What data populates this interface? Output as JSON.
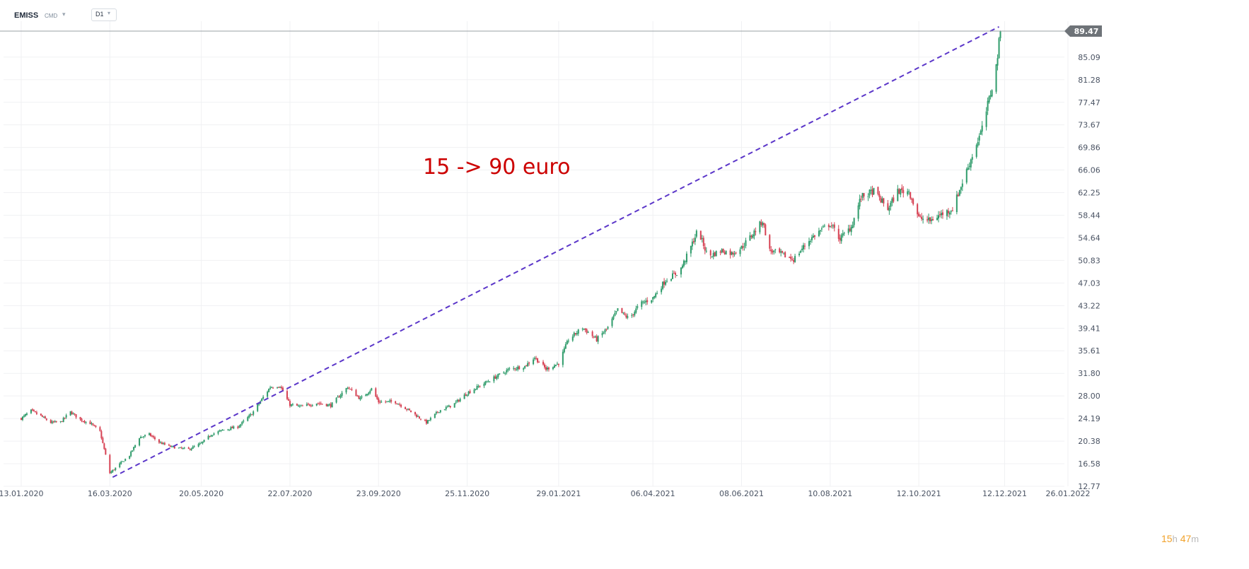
{
  "toolbar": {
    "symbol": "EMISS",
    "exchange": "CMD",
    "timeframe": "D1"
  },
  "price_tag": "89.47",
  "countdown": {
    "hours": "15",
    "h_unit": "h",
    "minutes": "47",
    "m_unit": "m"
  },
  "annotation": "15 -> 90 euro",
  "colors": {
    "up": "#2e9b6a",
    "down": "#d64153",
    "trendline": "#5b36c9",
    "annotation": "#cc0000",
    "price_line": "#9aa0a6",
    "grid": "#f0f1f3"
  },
  "chart_data": {
    "type": "candlestick",
    "y_ticks": [
      "89.47",
      "85.09",
      "81.28",
      "77.47",
      "73.67",
      "69.86",
      "66.06",
      "62.25",
      "58.44",
      "54.64",
      "50.83",
      "47.03",
      "43.22",
      "39.41",
      "35.61",
      "31.80",
      "28.00",
      "24.19",
      "20.38",
      "16.58",
      "12.77"
    ],
    "x_ticks": [
      "13.01.2020",
      "16.03.2020",
      "20.05.2020",
      "22.07.2020",
      "23.09.2020",
      "25.11.2020",
      "29.01.2021",
      "06.04.2021",
      "08.06.2021",
      "10.08.2021",
      "12.10.2021",
      "12.12.2021",
      "26.01.2022"
    ],
    "ylim": [
      12.77,
      90.5
    ],
    "last_price": 89.47,
    "grid": true,
    "close_path": [
      [
        "2020-01-13",
        24.2
      ],
      [
        "2020-01-20",
        25.5
      ],
      [
        "2020-01-27",
        24.6
      ],
      [
        "2020-02-03",
        23.5
      ],
      [
        "2020-02-10",
        23.6
      ],
      [
        "2020-02-17",
        25.3
      ],
      [
        "2020-02-24",
        24.0
      ],
      [
        "2020-03-02",
        23.4
      ],
      [
        "2020-03-09",
        22.0
      ],
      [
        "2020-03-16",
        15.0
      ],
      [
        "2020-03-23",
        16.5
      ],
      [
        "2020-03-30",
        18.0
      ],
      [
        "2020-04-06",
        21.0
      ],
      [
        "2020-04-13",
        21.5
      ],
      [
        "2020-04-20",
        20.2
      ],
      [
        "2020-04-27",
        19.5
      ],
      [
        "2020-05-04",
        19.2
      ],
      [
        "2020-05-11",
        19.0
      ],
      [
        "2020-05-20",
        20.0
      ],
      [
        "2020-05-27",
        21.5
      ],
      [
        "2020-06-05",
        22.3
      ],
      [
        "2020-06-15",
        22.8
      ],
      [
        "2020-06-25",
        25.0
      ],
      [
        "2020-07-08",
        29.5
      ],
      [
        "2020-07-15",
        29.7
      ],
      [
        "2020-07-22",
        26.5
      ],
      [
        "2020-07-30",
        26.2
      ],
      [
        "2020-08-10",
        26.8
      ],
      [
        "2020-08-20",
        26.4
      ],
      [
        "2020-09-01",
        29.5
      ],
      [
        "2020-09-10",
        27.5
      ],
      [
        "2020-09-18",
        29.2
      ],
      [
        "2020-09-23",
        27.0
      ],
      [
        "2020-10-05",
        27.0
      ],
      [
        "2020-10-15",
        25.5
      ],
      [
        "2020-10-27",
        23.5
      ],
      [
        "2020-11-05",
        25.5
      ],
      [
        "2020-11-15",
        26.5
      ],
      [
        "2020-11-25",
        28.5
      ],
      [
        "2020-12-10",
        30.5
      ],
      [
        "2020-12-25",
        32.5
      ],
      [
        "2021-01-05",
        33.0
      ],
      [
        "2021-01-12",
        34.5
      ],
      [
        "2021-01-20",
        32.5
      ],
      [
        "2021-01-29",
        33.5
      ],
      [
        "2021-02-05",
        37.5
      ],
      [
        "2021-02-15",
        39.5
      ],
      [
        "2021-02-25",
        37.5
      ],
      [
        "2021-03-05",
        39.5
      ],
      [
        "2021-03-12",
        42.5
      ],
      [
        "2021-03-20",
        41.0
      ],
      [
        "2021-03-28",
        43.5
      ],
      [
        "2021-04-06",
        44.5
      ],
      [
        "2021-04-15",
        47.5
      ],
      [
        "2021-04-25",
        49.0
      ],
      [
        "2021-05-01",
        52.0
      ],
      [
        "2021-05-08",
        56.0
      ],
      [
        "2021-05-15",
        51.5
      ],
      [
        "2021-05-25",
        52.5
      ],
      [
        "2021-06-01",
        52.0
      ],
      [
        "2021-06-08",
        53.0
      ],
      [
        "2021-06-15",
        55.0
      ],
      [
        "2021-06-23",
        57.5
      ],
      [
        "2021-06-28",
        52.5
      ],
      [
        "2021-07-05",
        52.0
      ],
      [
        "2021-07-15",
        51.0
      ],
      [
        "2021-07-25",
        54.0
      ],
      [
        "2021-08-01",
        55.5
      ],
      [
        "2021-08-10",
        57.0
      ],
      [
        "2021-08-17",
        54.5
      ],
      [
        "2021-08-25",
        56.5
      ],
      [
        "2021-09-01",
        61.5
      ],
      [
        "2021-09-10",
        62.5
      ],
      [
        "2021-09-20",
        59.5
      ],
      [
        "2021-09-27",
        62.5
      ],
      [
        "2021-10-05",
        62.5
      ],
      [
        "2021-10-12",
        58.0
      ],
      [
        "2021-10-20",
        57.5
      ],
      [
        "2021-10-27",
        58.5
      ],
      [
        "2021-11-05",
        59.5
      ],
      [
        "2021-11-12",
        64.0
      ],
      [
        "2021-11-19",
        68.5
      ],
      [
        "2021-11-26",
        73.0
      ],
      [
        "2021-12-02",
        79.0
      ],
      [
        "2021-12-06",
        83.5
      ],
      [
        "2021-12-09",
        89.47
      ]
    ],
    "trendline": {
      "from": [
        "2020-03-18",
        14.3
      ],
      "to": [
        "2021-12-08",
        90.2
      ]
    }
  }
}
